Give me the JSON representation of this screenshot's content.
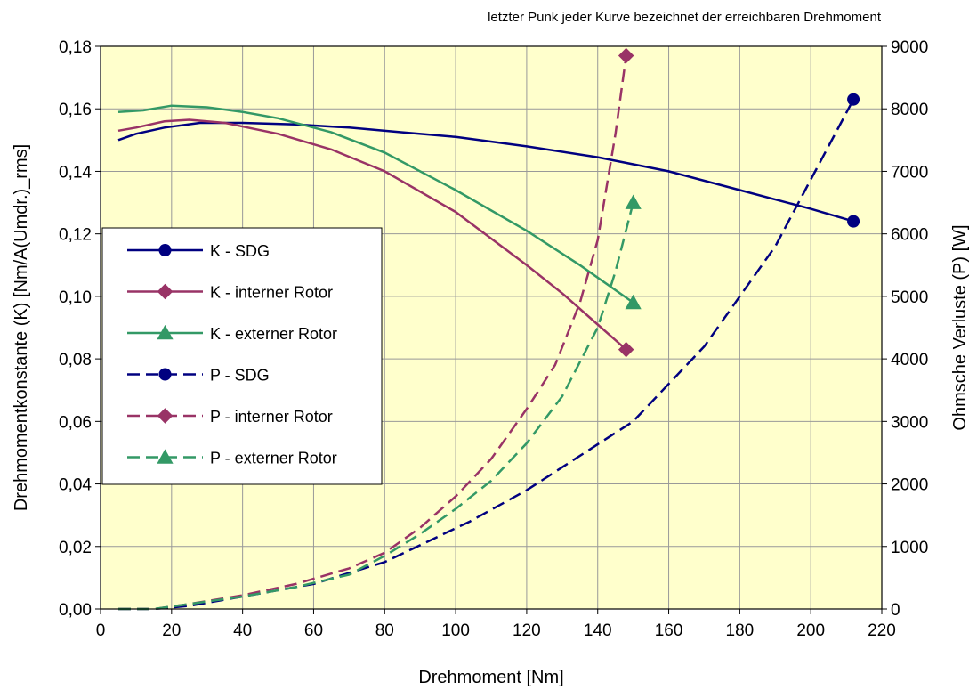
{
  "chart_data": {
    "type": "line",
    "annotation": "letzter Punk jeder Kurve bezeichnet der erreichbaren Drehmoment",
    "xlabel": "Drehmoment [Nm]",
    "ylabel": "Drehmomentkonstante (K) [Nm/A(Umdr.)_rms]",
    "y2label": "Ohmsche Verluste (P) [W]",
    "xlim": [
      0,
      220
    ],
    "ylim": [
      0,
      0.18
    ],
    "y2lim": [
      0,
      9000
    ],
    "x_ticks": [
      "0",
      "20",
      "40",
      "60",
      "80",
      "100",
      "120",
      "140",
      "160",
      "180",
      "200",
      "220"
    ],
    "y_ticks": [
      "0,00",
      "0,02",
      "0,04",
      "0,06",
      "0,08",
      "0,10",
      "0,12",
      "0,14",
      "0,16",
      "0,18"
    ],
    "y2_ticks": [
      "0",
      "1000",
      "2000",
      "3000",
      "4000",
      "5000",
      "6000",
      "7000",
      "8000",
      "9000"
    ],
    "grid": true,
    "legend_position": "left",
    "plot_background": "#ffffcc",
    "series": [
      {
        "name": "K - SDG",
        "axis": "left",
        "style": "solid",
        "color": "#000080",
        "marker": "circle",
        "x": [
          5,
          10,
          18,
          28,
          40,
          55,
          70,
          85,
          100,
          120,
          140,
          160,
          180,
          200,
          212
        ],
        "y": [
          0.15,
          0.152,
          0.154,
          0.1555,
          0.1555,
          0.155,
          0.154,
          0.1525,
          0.151,
          0.148,
          0.1445,
          0.14,
          0.134,
          0.128,
          0.124
        ]
      },
      {
        "name": "K - interner Rotor",
        "axis": "left",
        "style": "solid",
        "color": "#993366",
        "marker": "diamond",
        "x": [
          5,
          10,
          18,
          25,
          35,
          50,
          65,
          80,
          100,
          120,
          130,
          140,
          148
        ],
        "y": [
          0.153,
          0.154,
          0.156,
          0.1565,
          0.1555,
          0.152,
          0.147,
          0.14,
          0.127,
          0.11,
          0.101,
          0.091,
          0.083
        ]
      },
      {
        "name": "K - externer Rotor",
        "axis": "left",
        "style": "solid",
        "color": "#339966",
        "marker": "triangle",
        "x": [
          5,
          12,
          20,
          30,
          40,
          50,
          65,
          80,
          100,
          120,
          135,
          150
        ],
        "y": [
          0.159,
          0.1595,
          0.161,
          0.1605,
          0.159,
          0.157,
          0.1525,
          0.146,
          0.134,
          0.121,
          0.11,
          0.098
        ]
      },
      {
        "name": "P - SDG",
        "axis": "right",
        "style": "dashed",
        "color": "#000080",
        "marker": "circle",
        "x": [
          5,
          15,
          25,
          40,
          60,
          80,
          104,
          120,
          150,
          170,
          190,
          212
        ],
        "y": [
          0,
          0,
          50,
          200,
          400,
          750,
          1400,
          1900,
          3000,
          4200,
          5800,
          8150
        ]
      },
      {
        "name": "P - interner Rotor",
        "axis": "right",
        "style": "dashed",
        "color": "#993366",
        "marker": "diamond",
        "x": [
          5,
          15,
          25,
          40,
          55,
          70,
          80,
          90,
          100,
          110,
          120,
          128,
          135,
          140,
          145,
          148
        ],
        "y": [
          0,
          0,
          80,
          220,
          400,
          650,
          900,
          1300,
          1800,
          2400,
          3200,
          3900,
          4900,
          5900,
          7600,
          8850
        ]
      },
      {
        "name": "P - externer Rotor",
        "axis": "right",
        "style": "dashed",
        "color": "#339966",
        "marker": "triangle",
        "x": [
          5,
          15,
          25,
          40,
          55,
          70,
          80,
          90,
          100,
          110,
          120,
          130,
          140,
          145,
          150
        ],
        "y": [
          0,
          0,
          80,
          200,
          350,
          550,
          850,
          1200,
          1600,
          2050,
          2650,
          3400,
          4500,
          5400,
          6500
        ]
      }
    ]
  }
}
